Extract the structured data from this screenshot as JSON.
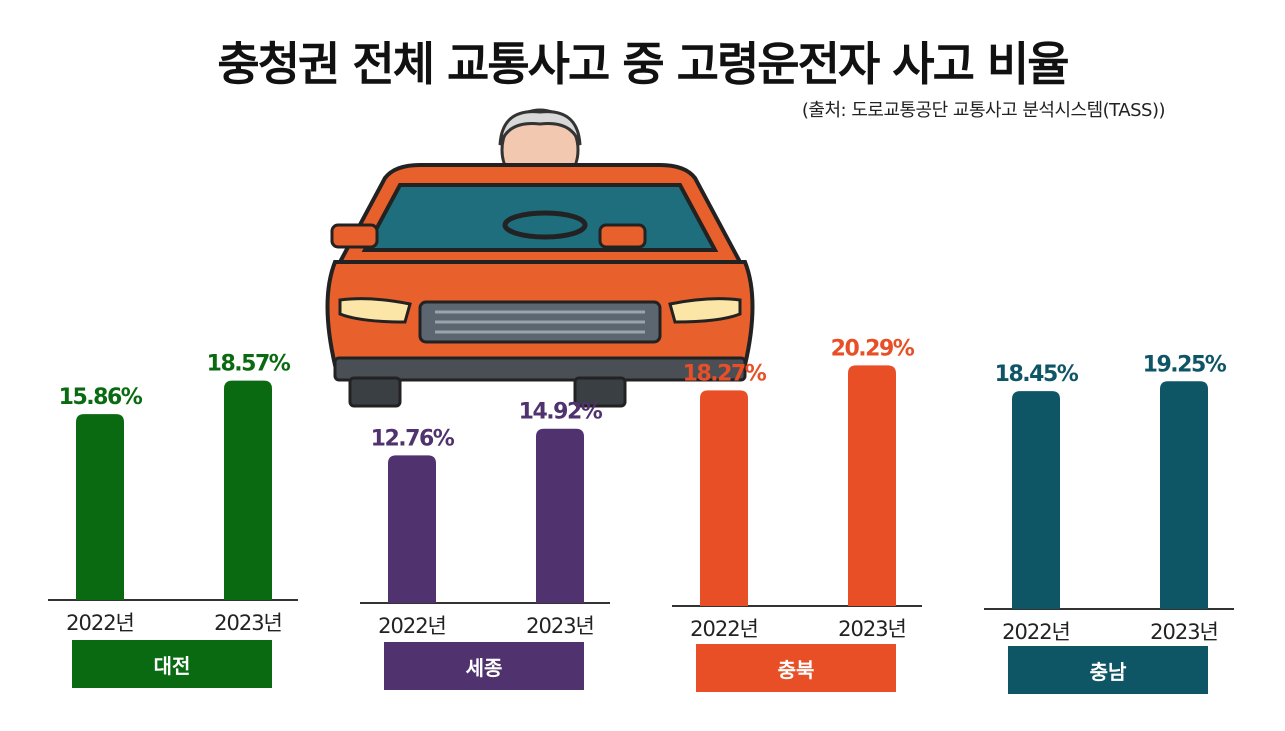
{
  "header": {
    "title": "충청권 전체 교통사고 중 고령운전자 사고 비율",
    "source": "(출처: 도로교통공단 교통사고 분석시스템(TASS))"
  },
  "colors": {
    "daejeon": "#0a6a12",
    "sejong": "#4f326e",
    "chungbuk": "#e94f26",
    "chungnam": "#0e5566"
  },
  "illustration": {
    "icon": "elderly-driver-car-icon"
  },
  "chart_data": [
    {
      "type": "bar",
      "region": "대전",
      "categories": [
        "2022년",
        "2023년"
      ],
      "values": [
        15.86,
        18.57
      ],
      "labels": [
        "15.86%",
        "18.57%"
      ]
    },
    {
      "type": "bar",
      "region": "세종",
      "categories": [
        "2022년",
        "2023년"
      ],
      "values": [
        12.76,
        14.92
      ],
      "labels": [
        "12.76%",
        "14.92%"
      ]
    },
    {
      "type": "bar",
      "region": "충북",
      "categories": [
        "2022년",
        "2023년"
      ],
      "values": [
        18.27,
        20.29
      ],
      "labels": [
        "18.27%",
        "20.29%"
      ]
    },
    {
      "type": "bar",
      "region": "충남",
      "categories": [
        "2022년",
        "2023년"
      ],
      "values": [
        18.45,
        19.25
      ],
      "labels": [
        "18.45%",
        "19.25%"
      ]
    }
  ]
}
